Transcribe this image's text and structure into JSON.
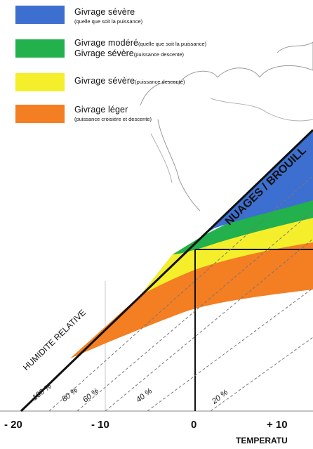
{
  "legend": {
    "items": [
      {
        "title": "Givrage sévère",
        "note": "",
        "title2": "",
        "note2": "",
        "sub": "(quelle que soit la puissance)",
        "color": "#3d6fd0"
      },
      {
        "title": "Givrage modéré",
        "note": "(quelle que soit la puissance)",
        "title2": "Givrage sévère",
        "note2": "(puissance descente)",
        "sub": "",
        "color": "#22b14c"
      },
      {
        "title": "Givrage sévère",
        "note": "(puissance descente)",
        "title2": "",
        "note2": "",
        "sub": "",
        "color": "#f4ef2a"
      },
      {
        "title": "Givrage léger",
        "note": "",
        "title2": "",
        "note2": "",
        "sub": "(puissance croisière et descente)",
        "color": "#f47e22"
      }
    ]
  },
  "chart": {
    "cloud_label": "NUAGES / BROUILL",
    "humidity_label": "HUMIDITE RELATIVE",
    "humidity_lines": [
      "100 %",
      "80 %",
      "60 %",
      "40 %",
      "20 %"
    ],
    "x_ticks": [
      "- 20",
      "- 10",
      "0",
      "+ 10"
    ],
    "x_axis_label": "TEMPERATU"
  }
}
